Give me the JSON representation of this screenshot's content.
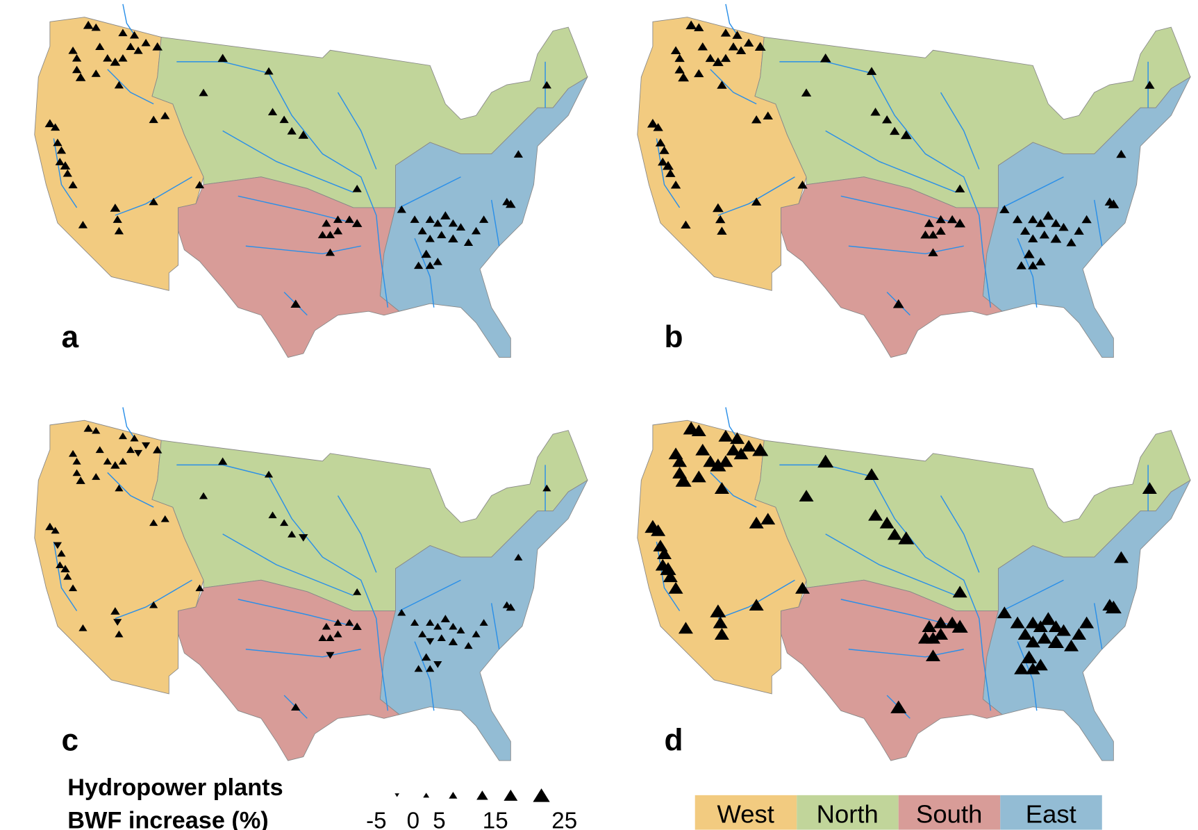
{
  "panels": [
    "a",
    "b",
    "c",
    "d"
  ],
  "legend": {
    "title_line1": "Hydropower plants",
    "title_line2": "BWF increase (%)",
    "size_labels": [
      -5,
      0,
      5,
      15,
      25
    ]
  },
  "regions": [
    {
      "name": "West",
      "color": "#f2cb80"
    },
    {
      "name": "North",
      "color": "#c1d59a"
    },
    {
      "name": "South",
      "color": "#d89c98"
    },
    {
      "name": "East",
      "color": "#93bcd4"
    }
  ]
}
